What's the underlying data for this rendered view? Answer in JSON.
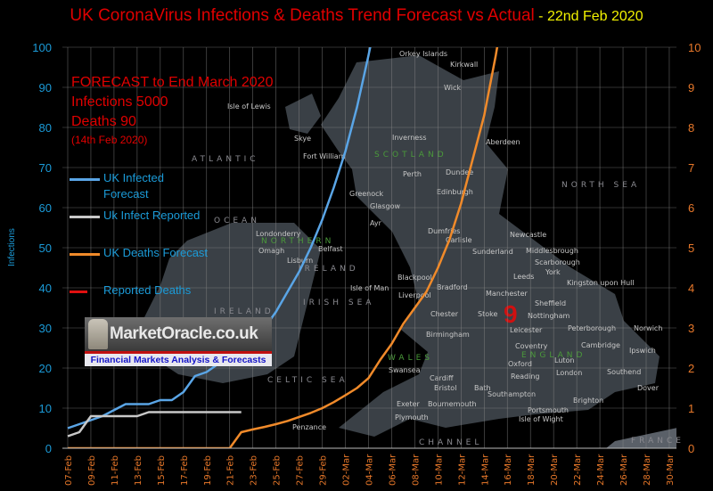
{
  "title": {
    "main": "UK CoronaVirus Infections & Deaths Trend Forecast vs Actual",
    "date": " - 22nd Feb 2020"
  },
  "forecast_note": {
    "line1": "FORECAST to End March 2020",
    "line2": "Infections  5000",
    "line3": "Deaths 90",
    "line4": "(14th Feb 2020)"
  },
  "logo": {
    "brand": "MarketOracle.co.uk",
    "tagline": "Financial Markets Analysis & Forecasts"
  },
  "map_labels": [
    "Orkey Islands",
    "Kirkwall",
    "Wick",
    "Isle of Lewis",
    "Skye",
    "Fort William",
    "Inverness",
    "Aberdeen",
    "SCOTLAND",
    "Perth",
    "Dundee",
    "Edinburgh",
    "Greenock",
    "Glasgow",
    "Ayr",
    "Dumfries",
    "Carlisle",
    "Sunderland",
    "Newcastle",
    "Middlesbrough",
    "Scarborough",
    "Londonderry",
    "NORTHERN",
    "Omagh",
    "Belfast",
    "Lisburn",
    "IRELAND",
    "Isle of Man",
    "Blackpool",
    "Bradford",
    "Leeds",
    "York",
    "Kingston upon Hull",
    "Liverpool",
    "Manchester",
    "Chester",
    "Stoke",
    "Sheffield",
    "Nottingham",
    "Birmingham",
    "Leicester",
    "Peterborough",
    "Norwich",
    "Coventry",
    "Cambridge",
    "Ipswich",
    "WALES",
    "ENGLAND",
    "Oxford",
    "Swansea",
    "Cardiff",
    "Bristol",
    "Bath",
    "Luton",
    "London",
    "Reading",
    "Southend",
    "Southampton",
    "Brighton",
    "Dover",
    "Exeter",
    "Bournemouth",
    "Portsmouth",
    "Isle of Wight",
    "Plymouth",
    "Penzance",
    "ATLANTIC",
    "OCEAN",
    "IRISH SEA",
    "CELTIC SEA",
    "NORTH SEA",
    "CHANNEL",
    "FRANCE",
    "IRELAND"
  ],
  "map_annotation": "9",
  "colors": {
    "infected_forecast": "#5aa5e6",
    "infect_reported": "#c8c8c8",
    "deaths_forecast": "#f08a2a",
    "reported_deaths": "#e01010",
    "left_axis": "#1b9bd8",
    "right_axis": "#e8782a",
    "title_main": "#e00000",
    "title_date": "#f2f200",
    "map_land": "#3a4046"
  },
  "chart_data": {
    "type": "line",
    "title": "UK CoronaVirus Infections & Deaths Trend Forecast vs Actual - 22nd Feb 2020",
    "ylabel": "Infections",
    "ylim": [
      0,
      100
    ],
    "y2lim": [
      0,
      10
    ],
    "yticks": [
      "0",
      "10",
      "20",
      "30",
      "40",
      "50",
      "60",
      "70",
      "80",
      "90",
      "100"
    ],
    "y2ticks": [
      "0",
      "1",
      "2",
      "3",
      "4",
      "5",
      "6",
      "7",
      "8",
      "9",
      "10"
    ],
    "xticks": [
      "07-Feb",
      "09-Feb",
      "11-Feb",
      "13-Feb",
      "15-Feb",
      "17-Feb",
      "19-Feb",
      "21-Feb",
      "23-Feb",
      "25-Feb",
      "27-Feb",
      "29-Feb",
      "02-Mar",
      "04-Mar",
      "06-Mar",
      "08-Mar",
      "10-Mar",
      "12-Mar",
      "14-Mar",
      "16-Mar",
      "18-Mar",
      "20-Mar",
      "22-Mar",
      "24-Mar",
      "26-Mar",
      "28-Mar",
      "30-Mar"
    ],
    "grid": true,
    "legend_position": "left",
    "series": [
      {
        "name": "UK Infected Forecast",
        "axis": "left",
        "color": "#5aa5e6",
        "x": [
          "07-Feb",
          "08-Feb",
          "10-Feb",
          "12-Feb",
          "14-Feb",
          "15-Feb",
          "16-Feb",
          "17-Feb",
          "18-Feb",
          "19-Feb",
          "20-Feb",
          "21-Feb",
          "22-Feb",
          "23-Feb",
          "24-Feb",
          "25-Feb",
          "26-Feb",
          "27-Feb",
          "28-Feb",
          "29-Feb",
          "01-Mar",
          "02-Mar",
          "03-Mar",
          "04-Mar",
          "05-Mar"
        ],
        "y": [
          5,
          6,
          8,
          11,
          11,
          12,
          12,
          14,
          18,
          19,
          21,
          22,
          24,
          27,
          30,
          34,
          39,
          44,
          50,
          57,
          65,
          74,
          85,
          98,
          112
        ]
      },
      {
        "name": "Uk Infect Reported",
        "axis": "left",
        "color": "#c8c8c8",
        "x": [
          "07-Feb",
          "08-Feb",
          "09-Feb",
          "13-Feb",
          "14-Feb",
          "22-Feb"
        ],
        "y": [
          3,
          4,
          8,
          8,
          9,
          9
        ]
      },
      {
        "name": "UK Deaths Forecast",
        "axis": "right",
        "color": "#f08a2a",
        "x": [
          "07-Feb",
          "21-Feb",
          "22-Feb",
          "23-Feb",
          "24-Feb",
          "25-Feb",
          "26-Feb",
          "27-Feb",
          "28-Feb",
          "29-Feb",
          "01-Mar",
          "02-Mar",
          "03-Mar",
          "04-Mar",
          "05-Mar",
          "06-Mar",
          "07-Mar",
          "08-Mar",
          "09-Mar",
          "10-Mar",
          "11-Mar",
          "12-Mar",
          "13-Mar",
          "14-Mar",
          "15-Mar",
          "16-Mar"
        ],
        "y": [
          0,
          0,
          0.4,
          0.47,
          0.53,
          0.6,
          0.68,
          0.78,
          0.88,
          1.0,
          1.15,
          1.32,
          1.5,
          1.75,
          2.2,
          2.6,
          3.1,
          3.5,
          3.9,
          4.5,
          5.2,
          6.1,
          7.2,
          8.3,
          9.8,
          11.5
        ]
      },
      {
        "name": "Reported Deaths",
        "axis": "right",
        "color": "#e01010",
        "x": [],
        "y": []
      }
    ]
  }
}
